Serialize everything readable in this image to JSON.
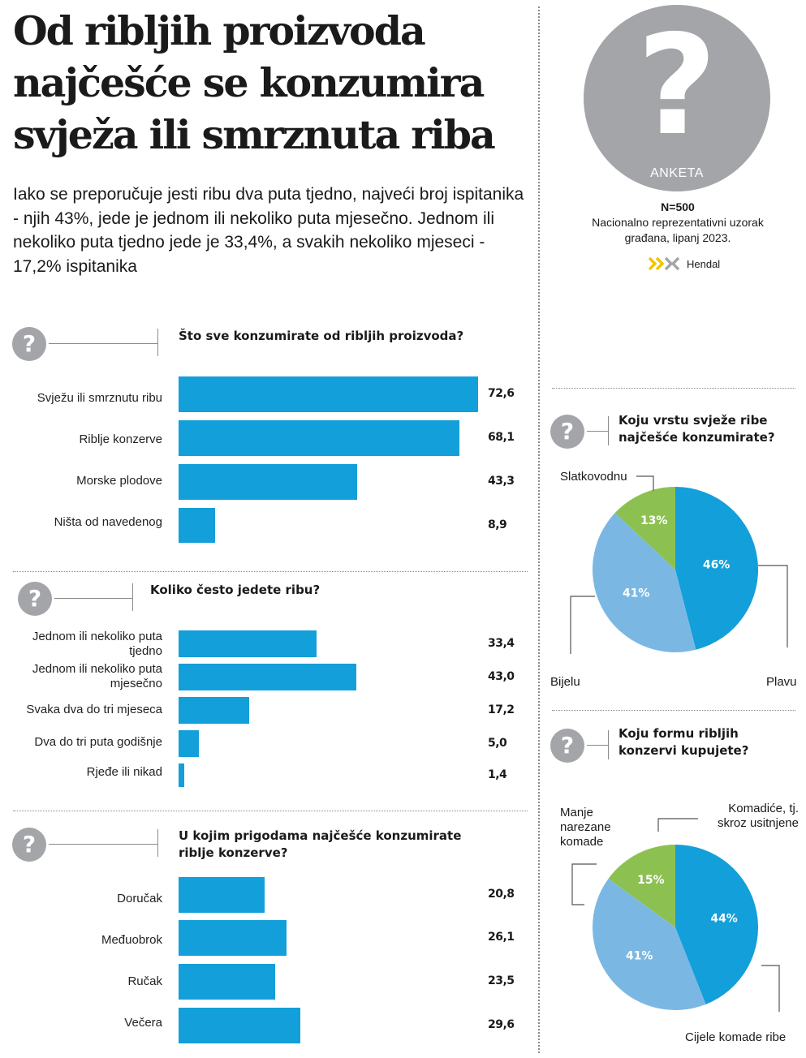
{
  "headline": [
    "Od ribljih proizvoda",
    "najčešće se konzumira",
    "svježa ili smrznuta riba"
  ],
  "lede": "Iako se preporučuje jesti ribu dva puta tjedno, najveći broj ispitanika - njih 43%, jede je jednom ili nekoliko puta mjesečno. Jednom ili nekoliko puta tjedno jede je 33,4%, a svakih nekoliko mjeseci - 17,2% ispitanika",
  "survey": {
    "badge_mark": "?",
    "badge_label": "ANKETA",
    "n": "N=500",
    "sample_line1": "Nacionalno reprezentativni uzorak",
    "sample_line2": "građana, lipanj 2023.",
    "brand": "Hendal"
  },
  "icons": {
    "question": "?"
  },
  "colors": {
    "bar": "#139fd9",
    "dark_blue": "#139fd9",
    "light_blue": "#7ab8e3",
    "green": "#8cc152",
    "grey": "#a3a5a8"
  },
  "chart_data": [
    {
      "type": "bar",
      "title": "Što sve konzumirate od ribljih proizvoda?",
      "categories": [
        "Svježu ili smrznutu ribu",
        "Riblje konzerve",
        "Morske plodove",
        "Ništa od navedenog"
      ],
      "values": [
        72.6,
        68.1,
        43.3,
        8.9
      ],
      "labels": [
        "72,6",
        "68,1",
        "43,3",
        "8,9"
      ],
      "xlim": [
        0,
        72.6
      ]
    },
    {
      "type": "bar",
      "title": "Koliko često jedete ribu?",
      "categories": [
        "Jednom ili nekoliko puta tjedno",
        "Jednom ili nekoliko puta mjesečno",
        "Svaka dva do tri mjeseca",
        "Dva do tri puta godišnje",
        "Rjeđe ili nikad"
      ],
      "values": [
        33.4,
        43.0,
        17.2,
        5.0,
        1.4
      ],
      "labels": [
        "33,4",
        "43,0",
        "17,2",
        "5,0",
        "1,4"
      ],
      "xlim": [
        0,
        72.6
      ]
    },
    {
      "type": "bar",
      "title": "U kojim prigodama najčešće konzumirate riblje konzerve?",
      "categories": [
        "Doručak",
        "Međuobrok",
        "Ručak",
        "Večera"
      ],
      "values": [
        20.8,
        26.1,
        23.5,
        29.6
      ],
      "labels": [
        "20,8",
        "26,1",
        "23,5",
        "29,6"
      ],
      "xlim": [
        0,
        72.6
      ]
    },
    {
      "type": "pie",
      "title": "Koju vrstu svježe ribe najčešće konzumirate?",
      "categories": [
        "Plavu",
        "Bijelu",
        "Slatkovodnu"
      ],
      "values": [
        46,
        41,
        13
      ],
      "labels": [
        "46%",
        "41%",
        "13%"
      ],
      "colors": [
        "#139fd9",
        "#7ab8e3",
        "#8cc152"
      ]
    },
    {
      "type": "pie",
      "title": "Koju formu ribljih konzervi kupujete?",
      "categories": [
        "Cijele komade ribe",
        "Manje narezane komade",
        "Komadiće, tj. skroz usitnjene"
      ],
      "values": [
        44,
        41,
        15
      ],
      "labels": [
        "44%",
        "41%",
        "15%"
      ],
      "colors": [
        "#139fd9",
        "#7ab8e3",
        "#8cc152"
      ]
    }
  ]
}
